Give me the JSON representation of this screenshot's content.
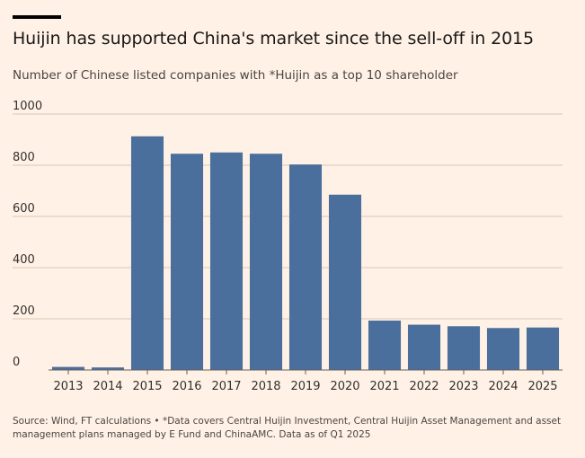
{
  "title": "Huijin has supported China's market since the sell-off in 2015",
  "subtitle": "Number of Chinese listed companies with *Huijin as a top 10 shareholder",
  "source": "Source: Wind, FT calculations • *Data covers Central Huijin Investment, Central Huijin Asset Management and asset management plans managed by E Fund and ChinaAMC. Data as of Q1 2025",
  "colors": {
    "background": "#fff1e5",
    "bar": "#4a6f9c",
    "grid": "#d9c8b8",
    "axis": "#66605c",
    "text": "#33302e"
  },
  "chart_data": {
    "type": "bar",
    "categories": [
      "2013",
      "2014",
      "2015",
      "2016",
      "2017",
      "2018",
      "2019",
      "2020",
      "2021",
      "2022",
      "2023",
      "2024",
      "2025"
    ],
    "values": [
      12,
      10,
      913,
      845,
      850,
      845,
      803,
      685,
      193,
      177,
      171,
      164,
      166
    ],
    "ylim": [
      0,
      1000
    ],
    "yticks": [
      0,
      200,
      400,
      600,
      800,
      1000
    ],
    "grid": true,
    "legend": "none"
  }
}
